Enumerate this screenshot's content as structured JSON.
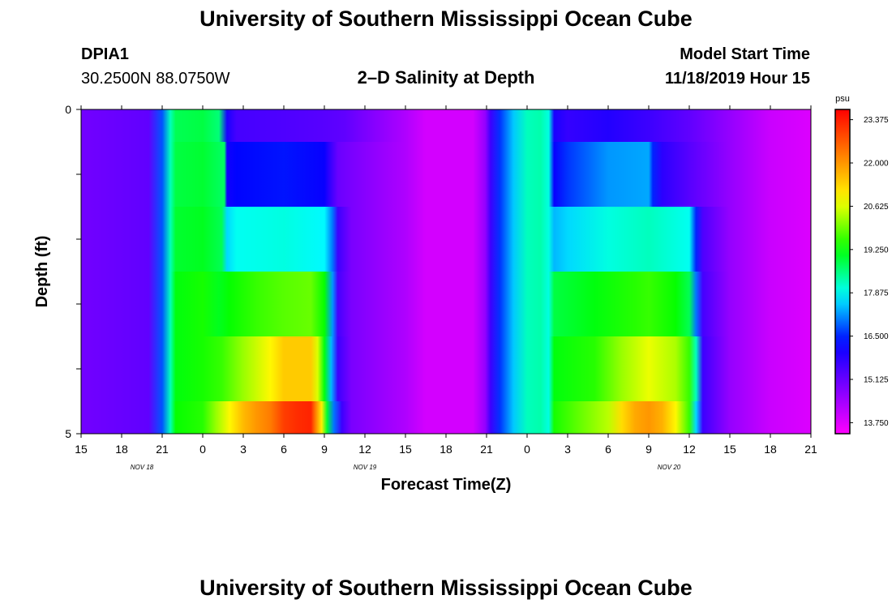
{
  "page": {
    "title": "University of Southern Mississippi Ocean Cube",
    "footer_title": "University of Southern Mississippi Ocean Cube",
    "station_id": "DPIA1",
    "station_coords": "30.2500N 88.0750W",
    "chart_subtitle": "2–D Salinity at Depth",
    "model_start_label": "Model Start Time",
    "model_start_value": "11/18/2019 Hour 15"
  },
  "chart_data": {
    "type": "heatmap",
    "title": "2–D Salinity at Depth",
    "xlabel": "Forecast Time(Z)",
    "ylabel": "Depth (ft)",
    "x_unit": "hours since 11/18 15Z",
    "xlim": [
      0,
      54
    ],
    "ylim": [
      0,
      5
    ],
    "y_tick_labels": [
      {
        "v": 0,
        "label": "0"
      },
      {
        "v": 1,
        "label": ""
      },
      {
        "v": 2,
        "label": ""
      },
      {
        "v": 3,
        "label": ""
      },
      {
        "v": 4,
        "label": ""
      },
      {
        "v": 5,
        "label": "5"
      }
    ],
    "x_tick_labels": [
      {
        "v": 0,
        "label": "15"
      },
      {
        "v": 3,
        "label": "18"
      },
      {
        "v": 6,
        "label": "21"
      },
      {
        "v": 9,
        "label": "0"
      },
      {
        "v": 12,
        "label": "3"
      },
      {
        "v": 15,
        "label": "6"
      },
      {
        "v": 18,
        "label": "9"
      },
      {
        "v": 21,
        "label": "12"
      },
      {
        "v": 24,
        "label": "15"
      },
      {
        "v": 27,
        "label": "18"
      },
      {
        "v": 30,
        "label": "21"
      },
      {
        "v": 33,
        "label": "0"
      },
      {
        "v": 36,
        "label": "3"
      },
      {
        "v": 39,
        "label": "6"
      },
      {
        "v": 42,
        "label": "9"
      },
      {
        "v": 45,
        "label": "12"
      },
      {
        "v": 48,
        "label": "15"
      },
      {
        "v": 51,
        "label": "18"
      },
      {
        "v": 54,
        "label": "21"
      }
    ],
    "date_labels": [
      {
        "v": 4.5,
        "label": "NOV 18"
      },
      {
        "v": 21,
        "label": "NOV 19"
      },
      {
        "v": 43.5,
        "label": "NOV 20"
      }
    ],
    "colorbar": {
      "unit": "psu",
      "min": 13.4,
      "max": 23.7,
      "tick_values": [
        23.375,
        22.0,
        20.625,
        19.25,
        17.875,
        16.5,
        15.125,
        13.75
      ],
      "tick_labels": [
        "23.375",
        "22.000",
        "20.625",
        "19.250",
        "17.875",
        "16.500",
        "15.125",
        "13.750"
      ],
      "colormap": "rainbow (magenta → blue → cyan → green → yellow → red)"
    },
    "layers": [
      {
        "depth_top": 0,
        "depth_bottom": 0.5,
        "series": [
          [
            0,
            15.0
          ],
          [
            5,
            15.2
          ],
          [
            6,
            16.8
          ],
          [
            6.6,
            18.2
          ],
          [
            7,
            18.8
          ],
          [
            9,
            18.9
          ],
          [
            10.2,
            18.6
          ],
          [
            10.8,
            16.0
          ],
          [
            11.5,
            15.5
          ],
          [
            15,
            15.4
          ],
          [
            18,
            15.3
          ],
          [
            19.5,
            15.2
          ],
          [
            20.5,
            15.0
          ],
          [
            24,
            14.3
          ],
          [
            25.5,
            13.9
          ],
          [
            29,
            13.9
          ],
          [
            29.9,
            14.6
          ],
          [
            30.3,
            15.6
          ],
          [
            31,
            16.6
          ],
          [
            32,
            17.5
          ],
          [
            33,
            18.2
          ],
          [
            34,
            18.3
          ],
          [
            34.6,
            18.0
          ],
          [
            35,
            16.0
          ],
          [
            36,
            15.7
          ],
          [
            39,
            15.9
          ],
          [
            42,
            15.6
          ],
          [
            45,
            15.2
          ],
          [
            48,
            14.6
          ],
          [
            51,
            14.0
          ],
          [
            54,
            13.8
          ]
        ]
      },
      {
        "depth_top": 0.5,
        "depth_bottom": 1.5,
        "series": [
          [
            0,
            15.0
          ],
          [
            5,
            15.2
          ],
          [
            6,
            16.8
          ],
          [
            6.6,
            18.2
          ],
          [
            7,
            18.9
          ],
          [
            9,
            19.0
          ],
          [
            10.6,
            18.7
          ],
          [
            10.8,
            16.1
          ],
          [
            11.5,
            16.3
          ],
          [
            15,
            16.4
          ],
          [
            18,
            16.2
          ],
          [
            18.5,
            15.6
          ],
          [
            19,
            15.1
          ],
          [
            20,
            14.9
          ],
          [
            22,
            14.6
          ],
          [
            24,
            14.3
          ],
          [
            25.5,
            13.9
          ],
          [
            29,
            13.9
          ],
          [
            29.9,
            14.6
          ],
          [
            30.3,
            15.6
          ],
          [
            31,
            16.6
          ],
          [
            32,
            17.5
          ],
          [
            33,
            18.2
          ],
          [
            34,
            18.3
          ],
          [
            34.6,
            18.0
          ],
          [
            35,
            16.2
          ],
          [
            36,
            16.6
          ],
          [
            39,
            17.2
          ],
          [
            42,
            17.3
          ],
          [
            42.3,
            16.5
          ],
          [
            43,
            15.8
          ],
          [
            45,
            15.3
          ],
          [
            48,
            14.6
          ],
          [
            51,
            14.0
          ],
          [
            54,
            13.8
          ]
        ]
      },
      {
        "depth_top": 1.5,
        "depth_bottom": 2.5,
        "series": [
          [
            0,
            15.0
          ],
          [
            5,
            15.2
          ],
          [
            6,
            16.8
          ],
          [
            6.6,
            18.2
          ],
          [
            7,
            19.0
          ],
          [
            9,
            19.1
          ],
          [
            10.4,
            18.8
          ],
          [
            10.8,
            17.6
          ],
          [
            11.5,
            17.9
          ],
          [
            15,
            18.0
          ],
          [
            18,
            17.8
          ],
          [
            18.6,
            17.0
          ],
          [
            19,
            15.6
          ],
          [
            20,
            14.9
          ],
          [
            22,
            14.6
          ],
          [
            24,
            14.3
          ],
          [
            25.5,
            13.9
          ],
          [
            29,
            13.9
          ],
          [
            29.9,
            14.6
          ],
          [
            30.3,
            15.6
          ],
          [
            31,
            16.6
          ],
          [
            32,
            17.5
          ],
          [
            33,
            18.2
          ],
          [
            34,
            18.3
          ],
          [
            34.6,
            18.0
          ],
          [
            35,
            17.4
          ],
          [
            36,
            17.6
          ],
          [
            39,
            18.0
          ],
          [
            42,
            18.2
          ],
          [
            45,
            17.9
          ],
          [
            45.5,
            16.5
          ],
          [
            46,
            15.4
          ],
          [
            48,
            14.6
          ],
          [
            51,
            14.0
          ],
          [
            54,
            13.8
          ]
        ]
      },
      {
        "depth_top": 2.5,
        "depth_bottom": 3.5,
        "series": [
          [
            0,
            15.0
          ],
          [
            5,
            15.2
          ],
          [
            6,
            16.8
          ],
          [
            6.6,
            18.2
          ],
          [
            7,
            19.2
          ],
          [
            9,
            19.4
          ],
          [
            10.2,
            19.1
          ],
          [
            11,
            19.3
          ],
          [
            13,
            19.6
          ],
          [
            15,
            19.8
          ],
          [
            17,
            19.9
          ],
          [
            18,
            19.3
          ],
          [
            18.6,
            17.2
          ],
          [
            19,
            15.5
          ],
          [
            20,
            14.9
          ],
          [
            22,
            14.6
          ],
          [
            24,
            14.3
          ],
          [
            25.5,
            13.9
          ],
          [
            29,
            13.9
          ],
          [
            29.9,
            14.6
          ],
          [
            30.3,
            15.6
          ],
          [
            31,
            16.6
          ],
          [
            32,
            17.5
          ],
          [
            33,
            18.2
          ],
          [
            34,
            18.3
          ],
          [
            34.6,
            18.0
          ],
          [
            35,
            18.9
          ],
          [
            38,
            19.2
          ],
          [
            41,
            19.5
          ],
          [
            42,
            19.6
          ],
          [
            44,
            19.3
          ],
          [
            45,
            18.8
          ],
          [
            45.5,
            17.0
          ],
          [
            46,
            15.5
          ],
          [
            48,
            14.6
          ],
          [
            51,
            14.0
          ],
          [
            54,
            13.8
          ]
        ]
      },
      {
        "depth_top": 3.5,
        "depth_bottom": 4.5,
        "series": [
          [
            0,
            15.0
          ],
          [
            5,
            15.2
          ],
          [
            6,
            16.8
          ],
          [
            6.6,
            18.2
          ],
          [
            7,
            19.2
          ],
          [
            9,
            19.4
          ],
          [
            10.4,
            19.6
          ],
          [
            12,
            20.2
          ],
          [
            14,
            20.9
          ],
          [
            15,
            21.4
          ],
          [
            17,
            21.4
          ],
          [
            17.5,
            20.6
          ],
          [
            18,
            19.2
          ],
          [
            18.5,
            17.4
          ],
          [
            19,
            15.6
          ],
          [
            20,
            14.9
          ],
          [
            22,
            14.6
          ],
          [
            24,
            14.3
          ],
          [
            25.5,
            13.9
          ],
          [
            29,
            13.9
          ],
          [
            29.9,
            14.6
          ],
          [
            30.3,
            15.6
          ],
          [
            31,
            16.6
          ],
          [
            32,
            17.5
          ],
          [
            33,
            18.2
          ],
          [
            34,
            18.3
          ],
          [
            34.6,
            18.0
          ],
          [
            35,
            19.2
          ],
          [
            38,
            19.5
          ],
          [
            40,
            20.2
          ],
          [
            42,
            20.7
          ],
          [
            44,
            20.3
          ],
          [
            45,
            19.6
          ],
          [
            45.5,
            18.2
          ],
          [
            46,
            15.6
          ],
          [
            48,
            14.6
          ],
          [
            51,
            14.0
          ],
          [
            54,
            13.8
          ]
        ]
      },
      {
        "depth_top": 4.5,
        "depth_bottom": 5,
        "series": [
          [
            0,
            15.0
          ],
          [
            5,
            15.2
          ],
          [
            6,
            16.8
          ],
          [
            6.6,
            18.2
          ],
          [
            7,
            19.3
          ],
          [
            9,
            19.5
          ],
          [
            10,
            20.2
          ],
          [
            11,
            20.9
          ],
          [
            12,
            21.6
          ],
          [
            13,
            22.0
          ],
          [
            14,
            22.3
          ],
          [
            15,
            23.0
          ],
          [
            16,
            23.2
          ],
          [
            17,
            23.3
          ],
          [
            17.3,
            22.4
          ],
          [
            17.8,
            21.0
          ],
          [
            18.2,
            19.0
          ],
          [
            18.7,
            17.0
          ],
          [
            19.3,
            15.6
          ],
          [
            20,
            14.9
          ],
          [
            22,
            14.6
          ],
          [
            24,
            14.3
          ],
          [
            25.5,
            13.9
          ],
          [
            29,
            13.9
          ],
          [
            29.9,
            14.6
          ],
          [
            30.3,
            15.6
          ],
          [
            31,
            16.6
          ],
          [
            32,
            17.5
          ],
          [
            33,
            18.2
          ],
          [
            34,
            18.3
          ],
          [
            34.6,
            18.0
          ],
          [
            35,
            19.4
          ],
          [
            37,
            19.9
          ],
          [
            39,
            20.4
          ],
          [
            40,
            21.2
          ],
          [
            41,
            21.8
          ],
          [
            42,
            22.0
          ],
          [
            43,
            21.7
          ],
          [
            44,
            20.9
          ],
          [
            45,
            19.6
          ],
          [
            45.5,
            17.6
          ],
          [
            46,
            15.6
          ],
          [
            48,
            14.6
          ],
          [
            51,
            14.0
          ],
          [
            54,
            13.8
          ]
        ]
      }
    ]
  }
}
